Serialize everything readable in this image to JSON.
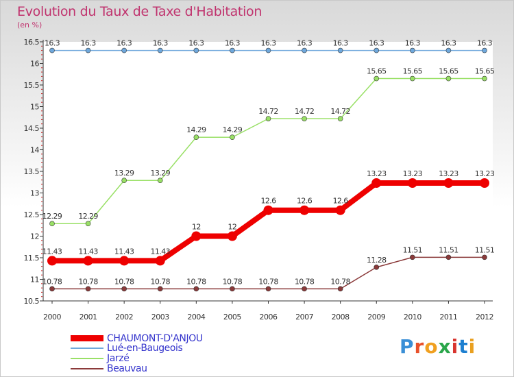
{
  "header": {
    "title": "Evolution du Taux de Taxe d'Habitation",
    "subtitle": "(en %)"
  },
  "logo": {
    "text": "Proxiti",
    "letter_colors": [
      "#3a8fd6",
      "#e8502a",
      "#f0a020",
      "#2aa64a",
      "#d8342e",
      "#1c7fd0",
      "#e9a020"
    ]
  },
  "chart_data": {
    "type": "line",
    "title": "Evolution du Taux de Taxe d'Habitation",
    "subtitle": "(en %)",
    "xlabel": "",
    "ylabel": "",
    "x": [
      "2000",
      "2001",
      "2002",
      "2003",
      "2004",
      "2005",
      "2006",
      "2007",
      "2008",
      "2009",
      "2010",
      "2011",
      "2012"
    ],
    "ylim": [
      10.5,
      16.5
    ],
    "yticks": [
      "10.5",
      "11",
      "11.5",
      "12",
      "12.5",
      "13",
      "13.5",
      "14",
      "14.5",
      "15",
      "15.5",
      "16",
      "16.5"
    ],
    "grid": "dotted minor ticks on y axis",
    "legend_position": "bottom-left",
    "series": [
      {
        "name": "CHAUMONT-D'ANJOU",
        "color": "#ee0000",
        "emphasis": "thick",
        "values": [
          11.43,
          11.43,
          11.43,
          11.43,
          12,
          12,
          12.6,
          12.6,
          12.6,
          13.23,
          13.23,
          13.23,
          13.23
        ],
        "labels": [
          "11.43",
          "11.43",
          "11.43",
          "11.43",
          "12",
          "12",
          "12.6",
          "12.6",
          "12.6",
          "13.23",
          "13.23",
          "13.23",
          "13.23"
        ]
      },
      {
        "name": "Lué-en-Baugeois",
        "color": "#6fa8dc",
        "emphasis": "thin",
        "values": [
          16.3,
          16.3,
          16.3,
          16.3,
          16.3,
          16.3,
          16.3,
          16.3,
          16.3,
          16.3,
          16.3,
          16.3,
          16.3
        ],
        "labels": [
          "16.3",
          "16.3",
          "16.3",
          "16.3",
          "16.3",
          "16.3",
          "16.3",
          "16.3",
          "16.3",
          "16.3",
          "16.3",
          "16.3",
          "16.3"
        ]
      },
      {
        "name": "Jarzé",
        "color": "#99e066",
        "emphasis": "thin",
        "values": [
          12.29,
          12.29,
          13.29,
          13.29,
          14.29,
          14.29,
          14.72,
          14.72,
          14.72,
          15.65,
          15.65,
          15.65,
          15.65
        ],
        "labels": [
          "12.29",
          "12.29",
          "13.29",
          "13.29",
          "14.29",
          "14.29",
          "14.72",
          "14.72",
          "14.72",
          "15.65",
          "15.65",
          "15.65",
          "15.65"
        ]
      },
      {
        "name": "Beauvau",
        "color": "#8b3a3a",
        "emphasis": "thin",
        "values": [
          10.78,
          10.78,
          10.78,
          10.78,
          10.78,
          10.78,
          10.78,
          10.78,
          10.78,
          11.28,
          11.51,
          11.51,
          11.51
        ],
        "labels": [
          "10.78",
          "10.78",
          "10.78",
          "10.78",
          "10.78",
          "10.78",
          "10.78",
          "10.78",
          "10.78",
          "11.28",
          "11.51",
          "11.51",
          "11.51"
        ]
      }
    ]
  }
}
